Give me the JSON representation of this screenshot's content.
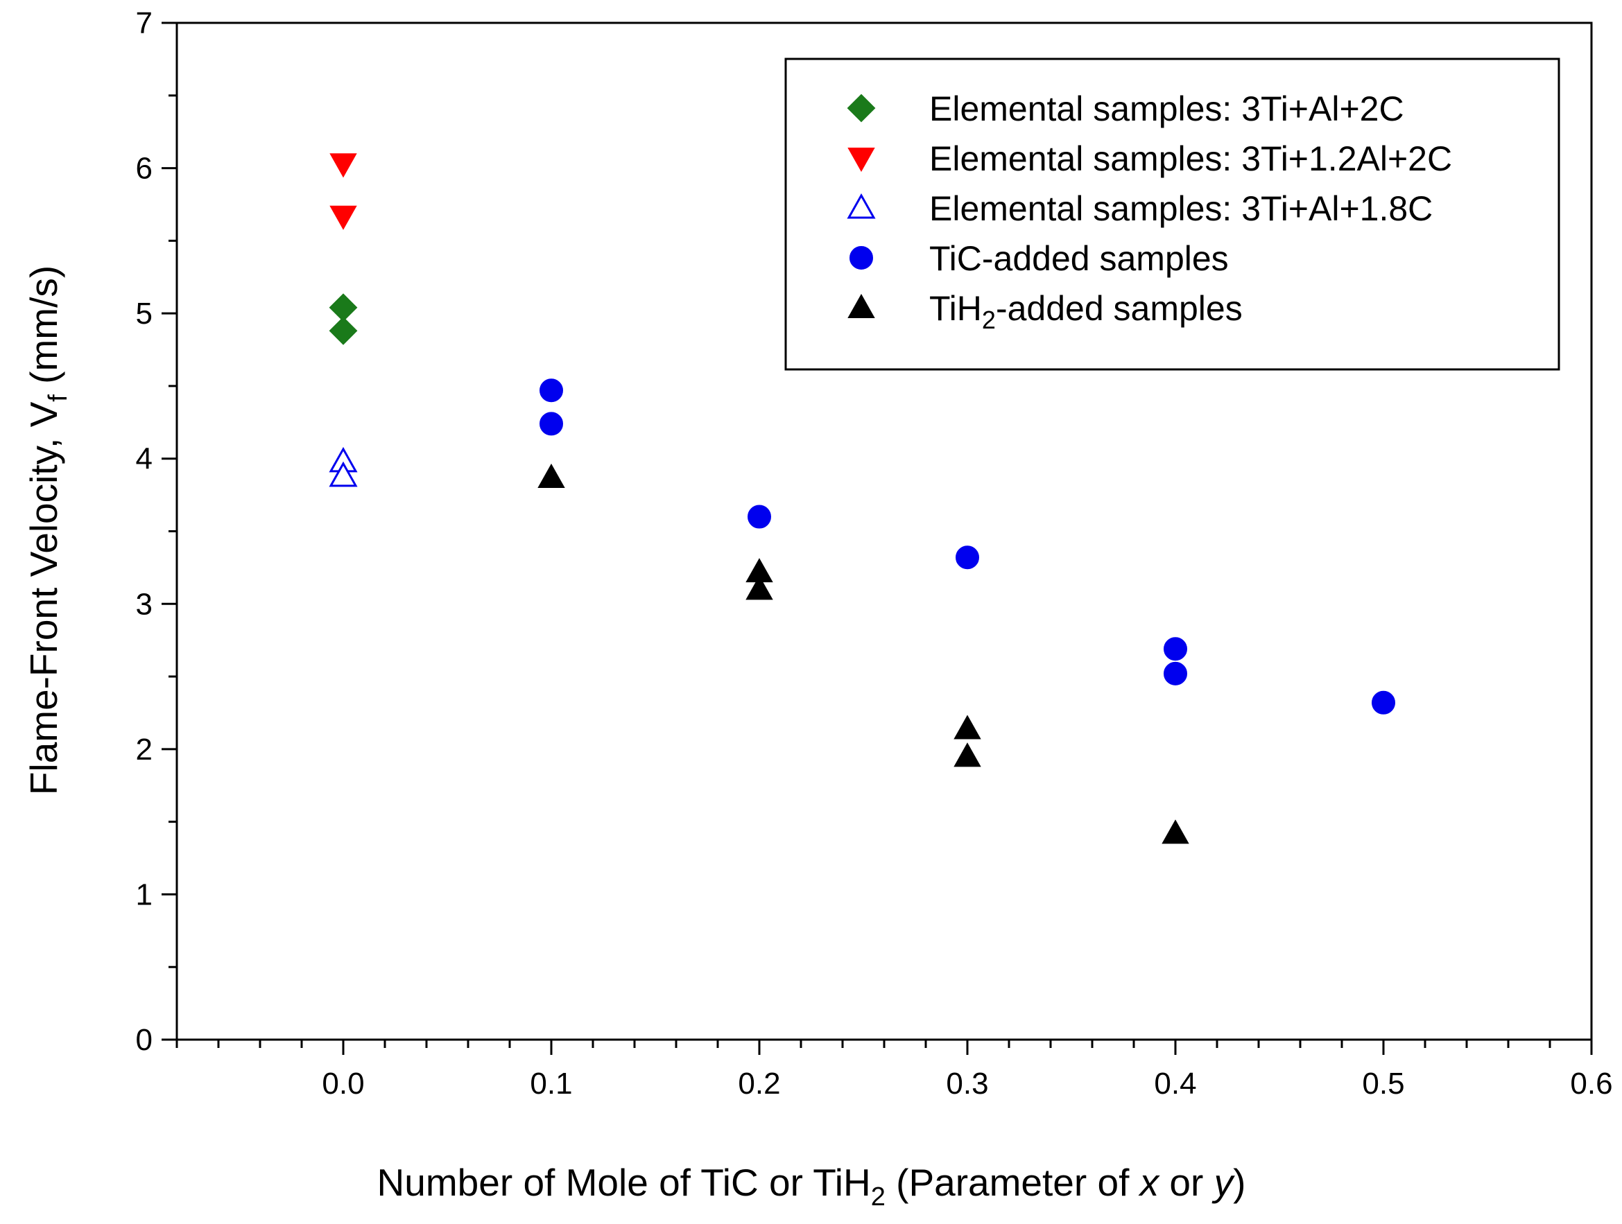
{
  "chart_data": {
    "type": "scatter",
    "xlabel": {
      "prefix": "Number of Mole of TiC or TiH",
      "sub": "2",
      "middle": " (Parameter of ",
      "x_var": "x",
      "or": " or ",
      "y_var": "y",
      "suffix": ")"
    },
    "ylabel": {
      "main": "Flame-Front Velocity, V",
      "sub": "f",
      "unit": " (mm/s)"
    },
    "xlim": [
      -0.08,
      0.6
    ],
    "ylim": [
      0,
      7
    ],
    "x_ticks": [
      {
        "v": 0.0,
        "label": "0.0"
      },
      {
        "v": 0.1,
        "label": "0.1"
      },
      {
        "v": 0.2,
        "label": "0.2"
      },
      {
        "v": 0.3,
        "label": "0.3"
      },
      {
        "v": 0.4,
        "label": "0.4"
      },
      {
        "v": 0.5,
        "label": "0.5"
      },
      {
        "v": 0.6,
        "label": "0.6"
      }
    ],
    "y_ticks": [
      {
        "v": 0,
        "label": "0"
      },
      {
        "v": 1,
        "label": "1"
      },
      {
        "v": 2,
        "label": "2"
      },
      {
        "v": 3,
        "label": "3"
      },
      {
        "v": 4,
        "label": "4"
      },
      {
        "v": 5,
        "label": "5"
      },
      {
        "v": 6,
        "label": "6"
      },
      {
        "v": 7,
        "label": "7"
      }
    ],
    "legend_position": "top-right",
    "series": [
      {
        "name": "Elemental samples: 3Ti+Al+2C",
        "marker": "diamond",
        "filled": true,
        "color": "#1a7a1a",
        "points": [
          {
            "x": 0.0,
            "y": 5.04
          },
          {
            "x": 0.0,
            "y": 4.88
          }
        ]
      },
      {
        "name": "Elemental samples: 3Ti+1.2Al+2C",
        "marker": "triangle-down",
        "filled": true,
        "color": "#ff0000",
        "points": [
          {
            "x": 0.0,
            "y": 6.03
          },
          {
            "x": 0.0,
            "y": 5.67
          }
        ]
      },
      {
        "name": "Elemental samples: 3Ti+Al+1.8C",
        "marker": "triangle-up",
        "filled": false,
        "color": "#0000ee",
        "points": [
          {
            "x": 0.0,
            "y": 3.98
          },
          {
            "x": 0.0,
            "y": 3.88
          }
        ]
      },
      {
        "name": "TiC-added samples",
        "marker": "circle",
        "filled": true,
        "color": "#0000ee",
        "points": [
          {
            "x": 0.1,
            "y": 4.47
          },
          {
            "x": 0.1,
            "y": 4.24
          },
          {
            "x": 0.2,
            "y": 3.6
          },
          {
            "x": 0.3,
            "y": 3.32
          },
          {
            "x": 0.4,
            "y": 2.69
          },
          {
            "x": 0.4,
            "y": 2.52
          },
          {
            "x": 0.5,
            "y": 2.32
          }
        ]
      },
      {
        "name": "TiH2-added samples",
        "name_parts": {
          "prefix": "TiH",
          "sub": "2",
          "suffix": "-added samples"
        },
        "marker": "triangle-up",
        "filled": true,
        "color": "#000000",
        "points": [
          {
            "x": 0.1,
            "y": 3.87
          },
          {
            "x": 0.2,
            "y": 3.22
          },
          {
            "x": 0.2,
            "y": 3.1
          },
          {
            "x": 0.3,
            "y": 2.14
          },
          {
            "x": 0.3,
            "y": 1.95
          },
          {
            "x": 0.4,
            "y": 1.42
          }
        ]
      }
    ]
  }
}
